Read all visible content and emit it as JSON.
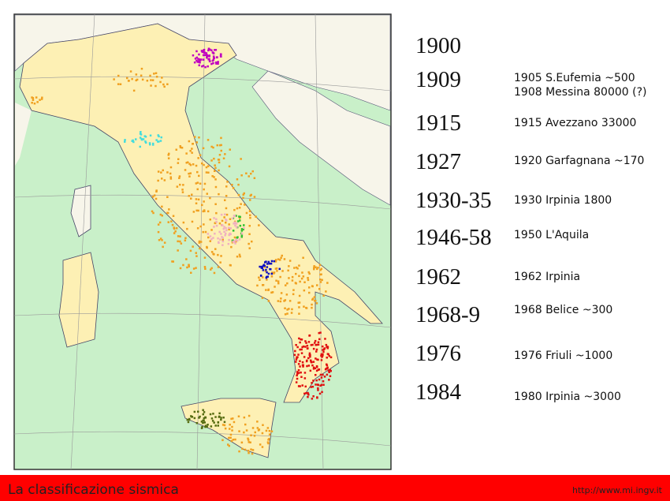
{
  "years": [
    "1900",
    "1909",
    "1915",
    "1927",
    "1930-35",
    "1946-58",
    "1962",
    "1968-9",
    "1976",
    "1984"
  ],
  "events": [
    "1905 S.Eufemia ~500",
    "1908 Messina 80000 (?)",
    "1915 Avezzano 33000",
    "1920 Garfagnana ~170",
    "1930 Irpinia 1800",
    "1950 L'Aquila",
    "1962 Irpinia",
    "1968 Belice ~300",
    "1976 Friuli ~1000",
    "1980 Irpinia ~3000"
  ],
  "footer": {
    "title": "La classificazione sismica",
    "url": "http://www.mi.ingv.it"
  }
}
